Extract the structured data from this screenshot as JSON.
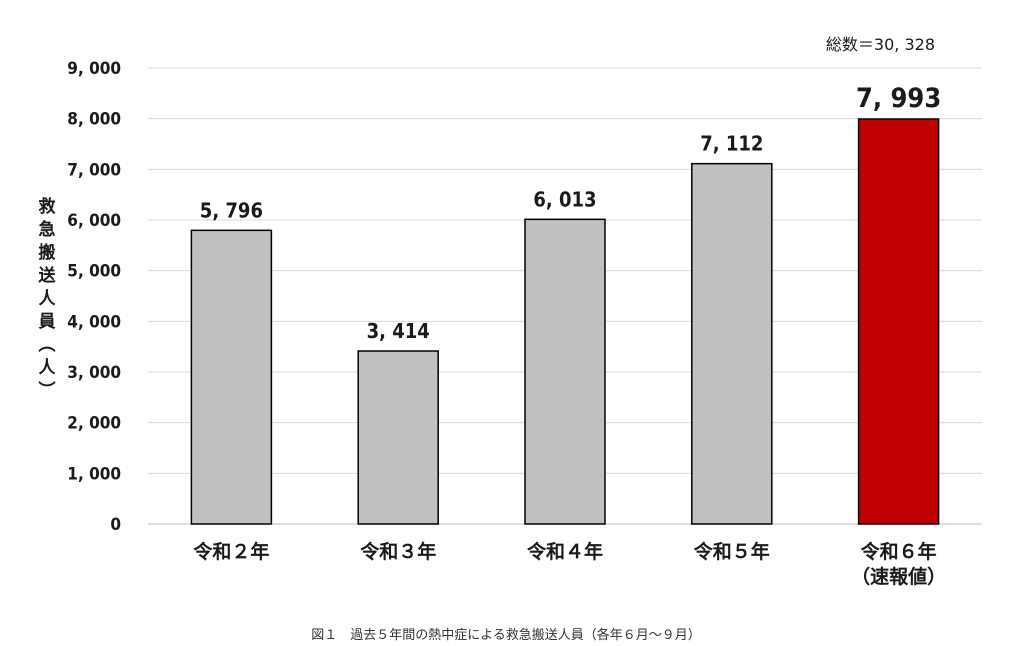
{
  "chart_data": {
    "type": "bar",
    "categories": [
      "令和２年",
      "令和３年",
      "令和４年",
      "令和５年",
      "令和６年\n（速報値）"
    ],
    "values": [
      5796,
      3414,
      6013,
      7112,
      7993
    ],
    "value_labels": [
      "5, 796",
      "3, 414",
      "6, 013",
      "7, 112",
      "7, 993"
    ],
    "ylabel": "救急搬送人員（人）",
    "ylim": [
      0,
      9000
    ],
    "yticks": [
      0,
      1000,
      2000,
      3000,
      4000,
      5000,
      6000,
      7000,
      8000,
      9000
    ],
    "ytick_labels": [
      "0",
      "1, 000",
      "2, 000",
      "3, 000",
      "4, 000",
      "5, 000",
      "6, 000",
      "7, 000",
      "8, 000",
      "9, 000"
    ],
    "grid": true,
    "legend": "none",
    "annotation": "総数＝30, 328",
    "highlight_index": 4,
    "colors": {
      "bar": "#c0c0c0",
      "highlight": "#c00000",
      "bar_edge": "#000000",
      "grid": "#d9d9d9"
    }
  },
  "caption": "図１　過去５年間の熱中症による救急搬送人員（各年６月～９月）"
}
